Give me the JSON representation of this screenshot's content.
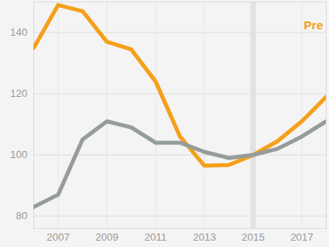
{
  "chart_data": {
    "type": "line",
    "x": [
      2006,
      2007,
      2008,
      2009,
      2010,
      2011,
      2012,
      2013,
      2014,
      2015,
      2016,
      2017,
      2018
    ],
    "series": [
      {
        "name": "Pre",
        "color": "#f5a01a",
        "values": [
          135,
          149,
          147,
          137,
          134.5,
          124,
          106,
          96.5,
          96.7,
          100,
          104.5,
          111,
          119
        ]
      },
      {
        "color": "#959d9b",
        "values": [
          83,
          87,
          105,
          111,
          109,
          104,
          104,
          101,
          99,
          100,
          102,
          106,
          111
        ]
      }
    ],
    "reference_x": 2015,
    "xlim": [
      2006,
      2018
    ],
    "xticks": [
      2007,
      2009,
      2011,
      2013,
      2015,
      2017
    ],
    "ylim": [
      76,
      150
    ],
    "yticks": [
      80,
      100,
      120,
      140
    ],
    "grid": true
  }
}
